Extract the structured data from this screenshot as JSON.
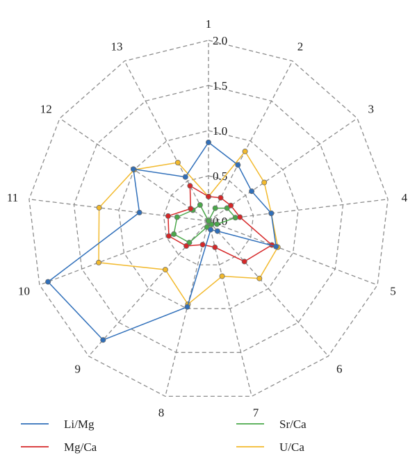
{
  "chart_data": {
    "type": "radar",
    "title": "",
    "categories": [
      "1",
      "2",
      "3",
      "4",
      "5",
      "6",
      "7",
      "8",
      "9",
      "10",
      "11",
      "12",
      "13"
    ],
    "rlim": [
      0,
      2.0
    ],
    "ticks": [
      0.0,
      0.5,
      1.0,
      1.5,
      2.0
    ],
    "tick_labels": [
      "0.0",
      "0.5",
      "1.0",
      "1.5",
      "2.0"
    ],
    "grid": true,
    "legend_position": "bottom",
    "series": [
      {
        "name": "Li/Mg",
        "color": "#2f6fba",
        "values": [
          0.87,
          0.7,
          0.58,
          0.7,
          0.8,
          0.15,
          0.1,
          0.98,
          1.76,
          1.9,
          0.77,
          1.01,
          0.55
        ]
      },
      {
        "name": "Mg/Ca",
        "color": "#d62728",
        "values": [
          0.27,
          0.29,
          0.3,
          0.35,
          0.75,
          0.6,
          0.3,
          0.27,
          0.37,
          0.47,
          0.45,
          0.24,
          0.44
        ]
      },
      {
        "name": "Sr/Ca",
        "color": "#4aa84a",
        "values": [
          0.0,
          0.16,
          0.25,
          0.3,
          0.1,
          0.05,
          0.0,
          0.07,
          0.32,
          0.41,
          0.35,
          0.21,
          0.2
        ]
      },
      {
        "name": "U/Ca",
        "color": "#f2b92c",
        "values": [
          0.27,
          0.87,
          0.75,
          0.7,
          0.82,
          0.85,
          0.63,
          0.95,
          0.72,
          1.3,
          1.22,
          1.0,
          0.73
        ]
      }
    ]
  }
}
